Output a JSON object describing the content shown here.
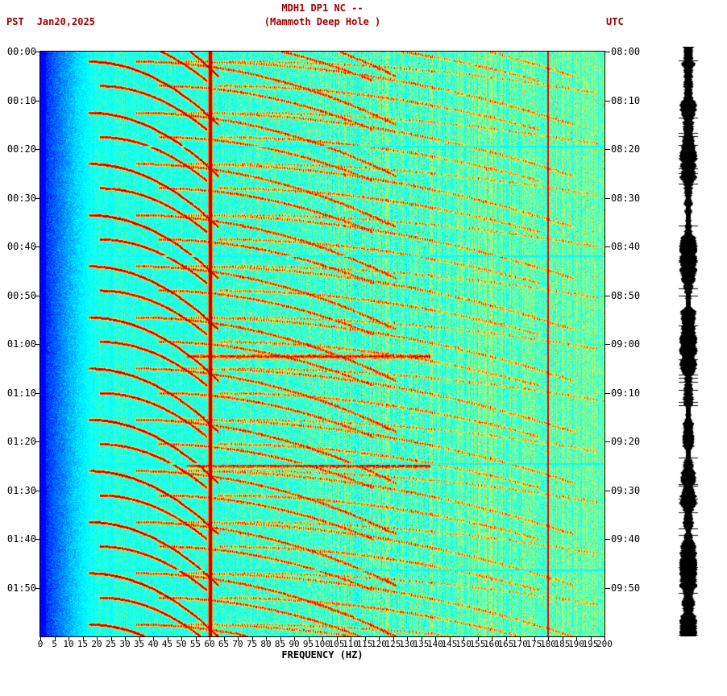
{
  "header": {
    "left_label": "PST",
    "date": "Jan20,2025",
    "title_line1": "MDH1 DP1 NC --",
    "title_line2": "(Mammoth Deep Hole )",
    "right_label": "UTC",
    "text_color": "#990000"
  },
  "axes": {
    "x_title": "FREQUENCY (HZ)",
    "left_times": [
      "00:00",
      "00:10",
      "00:20",
      "00:30",
      "00:40",
      "00:50",
      "01:00",
      "01:10",
      "01:20",
      "01:30",
      "01:40",
      "01:50"
    ],
    "right_times": [
      "08:00",
      "08:10",
      "08:20",
      "08:30",
      "08:40",
      "08:50",
      "09:00",
      "09:10",
      "09:20",
      "09:30",
      "09:40",
      "09:50"
    ],
    "freq_ticks": [
      0,
      5,
      10,
      15,
      20,
      25,
      30,
      35,
      40,
      45,
      50,
      55,
      60,
      65,
      70,
      75,
      80,
      85,
      90,
      95,
      100,
      105,
      110,
      115,
      120,
      125,
      130,
      135,
      140,
      145,
      150,
      155,
      160,
      165,
      170,
      175,
      180,
      185,
      190,
      195,
      200
    ]
  },
  "chart_data": {
    "type": "heatmap",
    "title": "MDH1 DP1 NC -- (Mammoth Deep Hole )",
    "xlabel": "FREQUENCY (HZ)",
    "x_range_hz": [
      0,
      200
    ],
    "x_tick_step_hz": 5,
    "date": "Jan20,2025",
    "y_axis_left": {
      "timezone": "PST",
      "start": "00:00",
      "end": "02:00",
      "tick_minutes": 10
    },
    "y_axis_right": {
      "timezone": "UTC",
      "start": "08:00",
      "end": "10:00",
      "tick_minutes": 10
    },
    "total_minutes": 120,
    "colormap": "jet",
    "features": {
      "powerline_hz": [
        60,
        180
      ],
      "low_freq_blue_band_hz": [
        0,
        18
      ],
      "background": "turquoise-cyan noise field, increasingly yellow-green speckled above ~60 Hz",
      "harmonic_arc_description": "repeating upward-gliding harmonic arcs (fundamental ~17 to ~63 Hz with overtones at 2x-4x) about every 10.5 minutes, drawn dark red with yellow-orange halos",
      "arc_start_minutes": [
        -8,
        2,
        12.5,
        23,
        33.5,
        44,
        54.5,
        65,
        75.5,
        86,
        96.5,
        107,
        117.5
      ],
      "arc_duration_minutes": 13,
      "arc_fundamental_start_hz": 17,
      "arc_fundamental_rise_hz": 46,
      "arc_harmonics": 4,
      "broadband_burst_minutes": [
        62.5,
        84.9
      ],
      "broadband_burst_range_hz": [
        52,
        138
      ],
      "light_gap_minutes": [
        19.3,
        41.8,
        84.4,
        106.2
      ]
    }
  },
  "amplitude_strip": {
    "description": "black vertical seismic amplitude trace at right edge",
    "color": "#000000"
  }
}
